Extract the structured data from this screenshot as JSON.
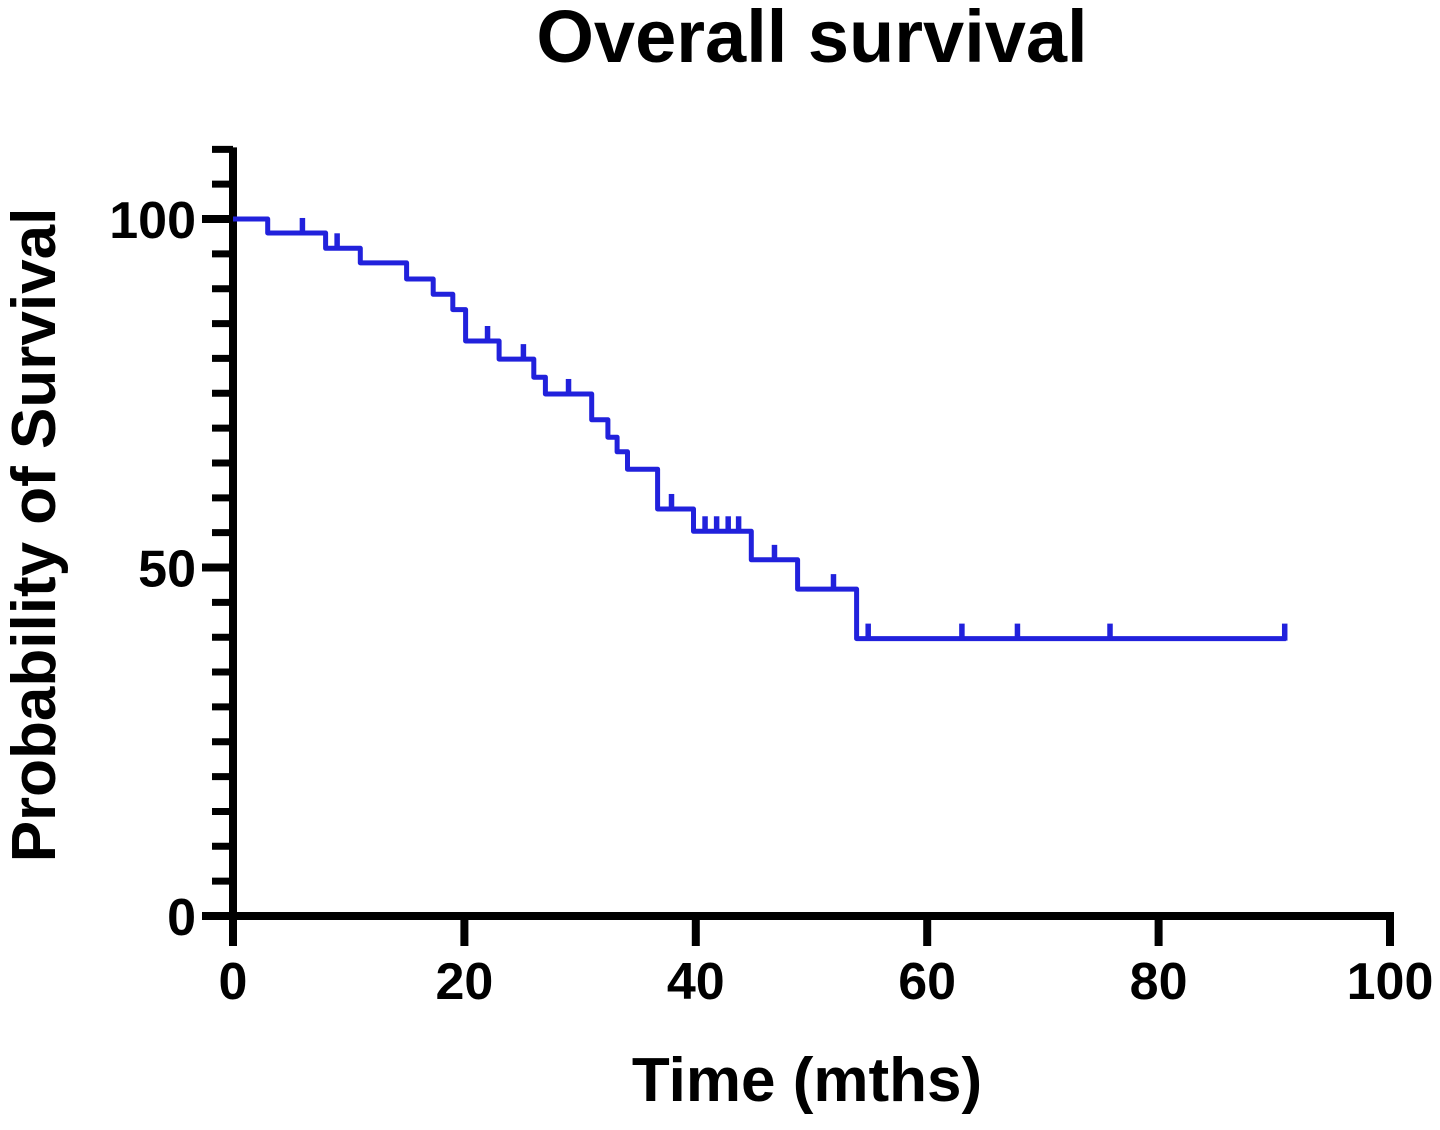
{
  "chart_data": {
    "type": "line",
    "subtype": "kaplan-meier-step",
    "title": "Overall survival",
    "xlabel": "Time (mths)",
    "ylabel": "Probability of Survival",
    "xlim": [
      0,
      100
    ],
    "ylim": [
      0,
      110
    ],
    "x_ticks": [
      0,
      20,
      40,
      60,
      80,
      100
    ],
    "y_ticks": [
      0,
      50,
      100
    ],
    "y_minor_step": 5,
    "grid": false,
    "legend": "none",
    "axis_color": "#000000",
    "line_color": "#2121DC",
    "series": [
      {
        "name": "Overall survival",
        "steps": [
          [
            0,
            100
          ],
          [
            3,
            98
          ],
          [
            8,
            95.8
          ],
          [
            11,
            93.7
          ],
          [
            15,
            91.4
          ],
          [
            17.3,
            89.2
          ],
          [
            19,
            87.0
          ],
          [
            20.1,
            82.5
          ],
          [
            23,
            79.9
          ],
          [
            26,
            77.3
          ],
          [
            27,
            74.9
          ],
          [
            31,
            71.2
          ],
          [
            32.4,
            68.7
          ],
          [
            33.2,
            66.6
          ],
          [
            34.1,
            64.1
          ],
          [
            36.7,
            58.4
          ],
          [
            39.8,
            55.2
          ],
          [
            44.8,
            51.1
          ],
          [
            48.8,
            46.9
          ],
          [
            53.9,
            39.8
          ]
        ],
        "end_time": 91,
        "censor_marks": [
          [
            6,
            98
          ],
          [
            9,
            95.8
          ],
          [
            22,
            82.5
          ],
          [
            25.1,
            79.9
          ],
          [
            29,
            74.9
          ],
          [
            37.9,
            58.4
          ],
          [
            40.8,
            55.2
          ],
          [
            41.8,
            55.2
          ],
          [
            42.8,
            55.2
          ],
          [
            43.7,
            55.2
          ],
          [
            46.8,
            51.1
          ],
          [
            51.9,
            46.9
          ],
          [
            54.9,
            39.8
          ],
          [
            63,
            39.8
          ],
          [
            67.8,
            39.8
          ],
          [
            75.8,
            39.8
          ],
          [
            90.9,
            39.8
          ]
        ]
      }
    ]
  }
}
